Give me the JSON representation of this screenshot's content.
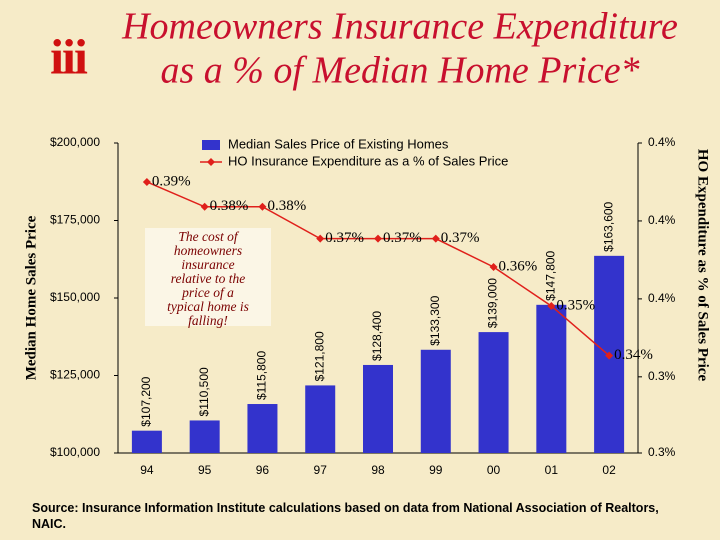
{
  "chart_data": {
    "type": "bar_line",
    "logo": "iii",
    "title": "Homeowners Insurance Expenditure",
    "subtitle": "as a % of Median Home Price*",
    "ylabel": "Median Home Sales Price",
    "y2label": "HO Expenditure as % of Sales Price",
    "categories": [
      "94",
      "95",
      "96",
      "97",
      "98",
      "99",
      "00",
      "01",
      "02"
    ],
    "series": [
      {
        "name": "Median Sales Price of Existing Homes",
        "type": "bar",
        "color": "#3333cc",
        "values": [
          107200,
          110500,
          115800,
          121800,
          128400,
          133300,
          139000,
          147800,
          163600
        ],
        "value_labels": [
          "$107,200",
          "$110,500",
          "$115,800",
          "$121,800",
          "$128,400",
          "$133,300",
          "$139,000",
          "$147,800",
          "$163,600"
        ]
      },
      {
        "name": "HO Insurance Expenditure as a % of Sales Price",
        "type": "line",
        "axis": "y2",
        "color": "#e0201b",
        "values": [
          0.389,
          0.382,
          0.382,
          0.373,
          0.373,
          0.373,
          0.365,
          0.354,
          0.34
        ],
        "value_labels": [
          "0.39%",
          "0.38%",
          "0.38%",
          "0.37%",
          "0.37%",
          "0.37%",
          "0.36%",
          "0.35%",
          "0.34%"
        ]
      }
    ],
    "ylim": [
      100000,
      200000
    ],
    "yticks": [
      {
        "value": 100000,
        "label": "$100,000"
      },
      {
        "value": 125000,
        "label": "$125,000"
      },
      {
        "value": 150000,
        "label": "$150,000"
      },
      {
        "value": 175000,
        "label": "$175,000"
      },
      {
        "value": 200000,
        "label": "$200,000"
      }
    ],
    "y2lim": [
      0.3125,
      0.4
    ],
    "y2ticks": [
      {
        "value": 0.3125,
        "label": "0.3%"
      },
      {
        "value": 0.334,
        "label": "0.3%"
      },
      {
        "value": 0.356,
        "label": "0.4%"
      },
      {
        "value": 0.378,
        "label": "0.4%"
      },
      {
        "value": 0.4,
        "label": "0.4%"
      }
    ],
    "annotation": "The cost of homeowners insurance relative to the price of a typical home is falling!",
    "source": "Source: Insurance Information Institute calculations based on data from National Association of Realtors, NAIC."
  }
}
